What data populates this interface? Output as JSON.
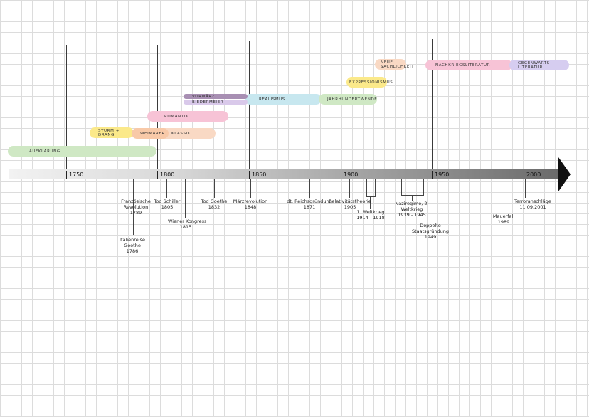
{
  "epochs": {
    "aufklaerung": "AUFKLÄRUNG",
    "sturm_drang": "STURM + DRANG",
    "weimarer": "WEIMARER",
    "klassik": "KLASSIK",
    "romantik": "ROMANTIK",
    "vormaerz": "VORMÄRZ",
    "biedermeier": "BIEDERMEIER",
    "realismus": "REALISMUS",
    "jahrhundertwende": "JAHRHUNDERTWENDE",
    "expressionismus": "EXPRESSIONISMUS",
    "neue_sachlichkeit": "NEUE SACHLICHKEIT",
    "nachkriegsliteratur": "NACHKRIEGSLITERATUR",
    "gegenwartsliteratur": "GEGENWARTS-LITERATUR"
  },
  "years": [
    "1750",
    "1800",
    "1850",
    "1900",
    "1950",
    "2000"
  ],
  "events": {
    "franz_rev": "Französische Revolution",
    "franz_rev_year": "1789",
    "italienreise": "Italienreise Goethe",
    "italienreise_year": "1786",
    "tod_schiller": "Tod Schiller",
    "tod_schiller_year": "1805",
    "wiener_kongress": "Wiener Kongress",
    "wiener_kongress_year": "1815",
    "tod_goethe": "Tod Goethe",
    "tod_goethe_year": "1832",
    "maerzrevolution": "Märzrevolution",
    "maerzrevolution_year": "1848",
    "reichsgruendung": "dt. Reichsgründung",
    "reichsgruendung_year": "1871",
    "relativitaet": "Relativitätstheorie",
    "relativitaet_year": "1905",
    "weltkrieg1": "1. Weltkrieg",
    "weltkrieg1_years": "1914 - 1918",
    "nazi": "Naziregime, 2. Weltkrieg",
    "nazi_years": "1939 - 1945",
    "staatsgruendung": "Doppelte Staatsgründung",
    "staatsgruendung_year": "1949",
    "mauerfall": "Mauerfall",
    "mauerfall_year": "1989",
    "terror": "Terroranschläge",
    "terror_date": "11.09.2001"
  },
  "colors": {
    "aufklaerung": "#cfe8c4",
    "sturm_drang": "#fbe98a",
    "weimarer": "#f8c9a8",
    "klassik": "#f9d9c4",
    "romantik": "#f7c3d6",
    "vormaerz": "#a88fb3",
    "biedermeier": "#d9c9ea",
    "realismus": "#c7e7ef",
    "jahrhundertwende": "#cfe8c4",
    "expressionismus": "#fbe98a",
    "neue_sachlichkeit": "#f9d9c4",
    "nachkriegsliteratur": "#f7c3d6",
    "gegenwartsliteratur": "#d6cdf0"
  }
}
